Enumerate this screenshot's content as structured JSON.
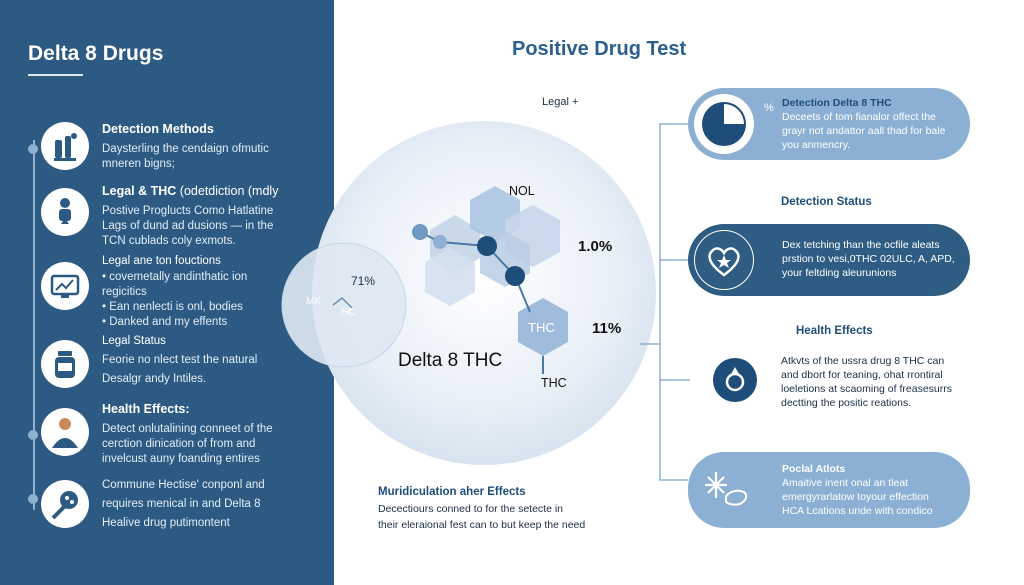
{
  "sidebar": {
    "title": "Delta 8 Drugs",
    "items": [
      {
        "heading": "Detection Methods",
        "lines": [
          "Daysterling the cendaign ofmutic",
          "mneren bigns;"
        ]
      },
      {
        "heading": "Legal & THC",
        "heading_suffix": "(odetdiction (mdly",
        "lines": [
          "Postive Proglucts Como Hatlatine",
          "Lags of dund ad dusions — in the",
          "TCN cublads coly exmots."
        ]
      },
      {
        "heading": "Legal ane ton fouctions",
        "lines": [
          "• covemetally andinthatic ion",
          "regicitics",
          "• Ean nenlecti is onl, bodies",
          "• Danked and my effents"
        ]
      },
      {
        "heading": "Legal Status",
        "lines": [
          "Feorie no nlect test the natural",
          "Desalgr andy Intiles."
        ]
      },
      {
        "heading": "Health Effects",
        "heading_suffix": ":",
        "lines": [
          "Detect onlutalining conneet of the",
          "cerction dinication of from and",
          "invelcust auny foanding entires"
        ]
      },
      {
        "heading": "",
        "lines": [
          "Commune Hectise' conponl and",
          "requires menical in and Delta 8",
          "Healive drug putimontent"
        ]
      }
    ]
  },
  "main": {
    "title": "Positive Drug Test",
    "legal_label": "Legal +",
    "molecule": {
      "nol_label": "NOL",
      "pct_1": "1.0%",
      "pct_2": "11%",
      "thc_hex_label": "THC",
      "thc_label": "THC",
      "center_label": "Delta 8 THC",
      "left_circle_pct": "71%",
      "left_circle_mk": "MK",
      "left_circle_hc": "HC"
    },
    "bottom_heading": "Muridiculation aher Effects",
    "bottom_lines": [
      "Decectiours conned to for the setecte in",
      "their eleraional fest can to but keep the need"
    ]
  },
  "right": {
    "card1": {
      "title": "Detection Delta 8 THC",
      "prefix": "%",
      "lines": [
        "Deceets of tom fianalor offect the",
        "grayr not andattor aall thad for bale",
        "you anmencry."
      ]
    },
    "label1": "Detection Status",
    "card2": {
      "lines": [
        "Dex tetching than the ocfile aleats",
        "prstion to vesi,0THC 02ULC, A, APD,",
        "your feltding aleurunions"
      ]
    },
    "label2": "Health Effects",
    "card3": {
      "lines": [
        "Atkvts of the ussra drug 8 THC can",
        "and dbort for teaning, ohat rrontiral",
        "loeletions at scaoming of freasesurrs",
        "dectting the positic reations."
      ]
    },
    "card4": {
      "title": "Poclal Atlots",
      "lines": [
        "Amaitive inent onal an tleat",
        "emergyrarlatow toyour effection",
        "HCA Lcations uride with condico"
      ]
    }
  },
  "colors": {
    "sidebar": "#2d5a82",
    "accent": "#2b5f8e",
    "card_light": "#8cb0d4",
    "card_dark": "#2e5c83"
  }
}
